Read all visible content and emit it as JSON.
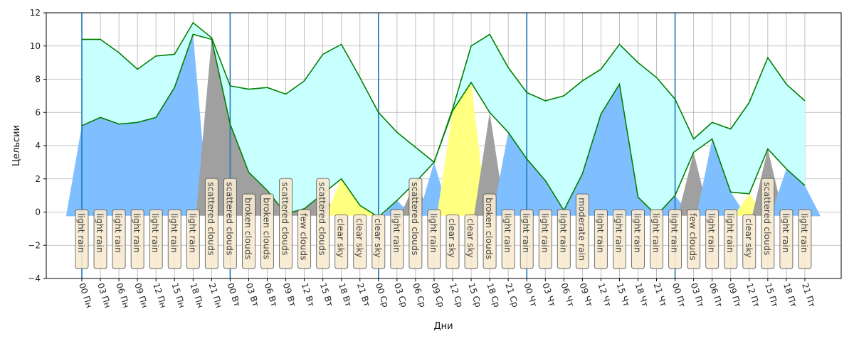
{
  "chart_data": {
    "type": "area",
    "title": "",
    "xlabel": "Дни",
    "ylabel": "Цельсии",
    "ylim": [
      -4,
      12
    ],
    "yticks": [
      -4,
      -2,
      0,
      2,
      4,
      6,
      8,
      10,
      12
    ],
    "grid": true,
    "x": [
      "00 Пн",
      "03 Пн",
      "06 Пн",
      "09 Пн",
      "12 Пн",
      "15 Пн",
      "18 Пн",
      "21 Пн",
      "00 Вт",
      "03 Вт",
      "06 Вт",
      "09 Вт",
      "12 Вт",
      "15 Вт",
      "18 Вт",
      "21 Вт",
      "00 Ср",
      "03 Ср",
      "06 Ср",
      "09 Ср",
      "12 Ср",
      "15 Ср",
      "18 Ср",
      "21 Ср",
      "00 Чт",
      "03 Чт",
      "06 Чт",
      "09 Чт",
      "12 Чт",
      "15 Чт",
      "18 Чт",
      "21 Чт",
      "00 Пт",
      "03 Пт",
      "06 Пт",
      "09 Пт",
      "12 Пт",
      "15 Пт",
      "18 Пт",
      "21 Пт"
    ],
    "day_separators": [
      "00 Пн",
      "00 Вт",
      "00 Ср",
      "00 Чт",
      "00 Пт"
    ],
    "series": [
      {
        "role": "max",
        "values": [
          10.4,
          10.4,
          9.6,
          8.6,
          9.4,
          9.5,
          11.4,
          10.5,
          7.6,
          7.4,
          7.5,
          7.1,
          7.9,
          9.5,
          10.1,
          8.1,
          6.0,
          4.8,
          3.9,
          3.0,
          6.2,
          10.0,
          10.7,
          8.7,
          7.2,
          6.7,
          7.0,
          7.9,
          8.6,
          10.1,
          9.0,
          8.1,
          6.8,
          4.4,
          5.4,
          5.0,
          6.6,
          9.3,
          7.7,
          6.7
        ]
      },
      {
        "role": "min",
        "values": [
          5.2,
          5.7,
          5.3,
          5.4,
          5.7,
          7.5,
          10.7,
          10.4,
          5.3,
          2.4,
          1.3,
          -0.1,
          0.2,
          1.1,
          2.0,
          0.4,
          -0.3,
          0.7,
          1.8,
          3.0,
          6.1,
          7.8,
          6.0,
          4.8,
          3.2,
          1.9,
          0.1,
          2.3,
          5.9,
          7.7,
          0.9,
          -0.2,
          1.0,
          3.6,
          4.4,
          1.2,
          1.1,
          3.8,
          2.6,
          1.6
        ]
      }
    ],
    "descriptions": [
      "light rain",
      "light rain",
      "light rain",
      "light rain",
      "light rain",
      "light rain",
      "light rain",
      "scattered clouds",
      "scattered clouds",
      "broken clouds",
      "broken clouds",
      "scattered clouds",
      "few clouds",
      "scattered clouds",
      "clear sky",
      "clear sky",
      "clear sky",
      "light rain",
      "scattered clouds",
      "light rain",
      "clear sky",
      "clear sky",
      "broken clouds",
      "light rain",
      "light rain",
      "light rain",
      "light rain",
      "moderate rain",
      "light rain",
      "light rain",
      "light rain",
      "light rain",
      "light rain",
      "few clouds",
      "light rain",
      "light rain",
      "clear sky",
      "scattered clouds",
      "light rain",
      "light rain"
    ],
    "colors": {
      "max_line": "#008000",
      "min_line": "#008000",
      "separator": "#1f77b4",
      "rain_fill": "#7fbfff",
      "clouds_fill": "#a0a0a0",
      "clear_fill": "#ffff80",
      "band_fill": "#c8ffff",
      "label_bg": "#f8ead0",
      "grid": "#b0b0b0"
    }
  }
}
